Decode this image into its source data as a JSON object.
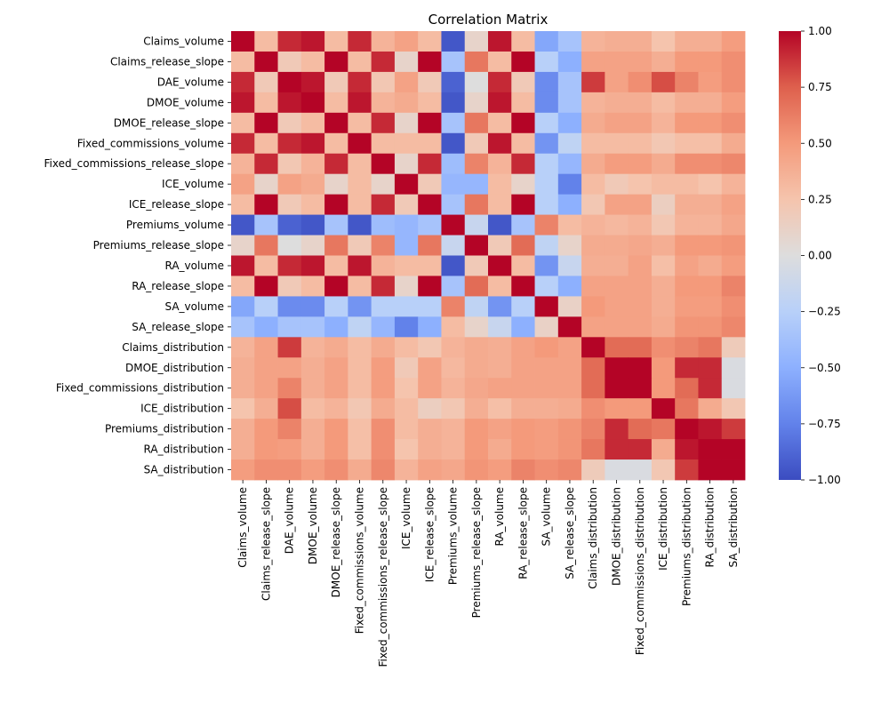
{
  "chart_data": {
    "type": "heatmap",
    "title": "Correlation Matrix",
    "labels": [
      "Claims_volume",
      "Claims_release_slope",
      "DAE_volume",
      "DMOE_volume",
      "DMOE_release_slope",
      "Fixed_commissions_volume",
      "Fixed_commissions_release_slope",
      "ICE_volume",
      "ICE_release_slope",
      "Premiums_volume",
      "Premiums_release_slope",
      "RA_volume",
      "RA_release_slope",
      "SA_volume",
      "SA_release_slope",
      "Claims_distribution",
      "DMOE_distribution",
      "Fixed_commissions_distribution",
      "ICE_distribution",
      "Premiums_distribution",
      "RA_distribution",
      "SA_distribution"
    ],
    "values": [
      [
        1.0,
        0.3,
        0.9,
        0.95,
        0.3,
        0.9,
        0.35,
        0.45,
        0.3,
        -0.95,
        0.1,
        0.95,
        0.3,
        -0.55,
        -0.35,
        0.35,
        0.38,
        0.38,
        0.25,
        0.38,
        0.38,
        0.48
      ],
      [
        0.3,
        1.0,
        0.2,
        0.3,
        1.0,
        0.3,
        0.9,
        0.1,
        1.0,
        -0.35,
        0.65,
        0.3,
        1.0,
        -0.25,
        -0.5,
        0.45,
        0.45,
        0.45,
        0.38,
        0.5,
        0.5,
        0.55
      ],
      [
        0.9,
        0.2,
        1.0,
        0.95,
        0.2,
        0.9,
        0.22,
        0.45,
        0.2,
        -0.9,
        0.0,
        0.9,
        0.2,
        -0.7,
        -0.35,
        0.85,
        0.45,
        0.55,
        0.8,
        0.6,
        0.48,
        0.55
      ],
      [
        0.95,
        0.3,
        0.95,
        1.0,
        0.3,
        0.95,
        0.35,
        0.4,
        0.3,
        -0.95,
        0.1,
        0.95,
        0.3,
        -0.7,
        -0.35,
        0.35,
        0.38,
        0.38,
        0.3,
        0.38,
        0.38,
        0.48
      ],
      [
        0.3,
        1.0,
        0.2,
        0.3,
        1.0,
        0.3,
        0.9,
        0.1,
        1.0,
        -0.35,
        0.65,
        0.3,
        1.0,
        -0.25,
        -0.5,
        0.4,
        0.45,
        0.45,
        0.35,
        0.5,
        0.5,
        0.55
      ],
      [
        0.9,
        0.3,
        0.9,
        0.95,
        0.3,
        1.0,
        0.3,
        0.3,
        0.3,
        -0.95,
        0.2,
        0.95,
        0.3,
        -0.65,
        -0.2,
        0.3,
        0.3,
        0.3,
        0.22,
        0.28,
        0.28,
        0.4
      ],
      [
        0.35,
        0.9,
        0.22,
        0.35,
        0.9,
        0.3,
        1.0,
        0.1,
        0.9,
        -0.4,
        0.6,
        0.35,
        0.9,
        -0.25,
        -0.45,
        0.4,
        0.48,
        0.48,
        0.4,
        0.55,
        0.55,
        0.58
      ],
      [
        0.45,
        0.1,
        0.45,
        0.4,
        0.1,
        0.3,
        0.1,
        1.0,
        0.2,
        -0.45,
        -0.45,
        0.3,
        0.1,
        -0.25,
        -0.75,
        0.3,
        0.2,
        0.25,
        0.3,
        0.3,
        0.25,
        0.35
      ],
      [
        0.3,
        1.0,
        0.2,
        0.3,
        1.0,
        0.3,
        0.9,
        0.2,
        1.0,
        -0.35,
        0.65,
        0.3,
        1.0,
        -0.25,
        -0.5,
        0.22,
        0.45,
        0.45,
        0.15,
        0.38,
        0.38,
        0.45
      ],
      [
        -0.95,
        -0.35,
        -0.9,
        -0.95,
        -0.35,
        -0.95,
        -0.4,
        -0.45,
        -0.35,
        1.0,
        -0.15,
        -0.95,
        -0.35,
        0.6,
        0.3,
        0.35,
        0.32,
        0.35,
        0.22,
        0.35,
        0.35,
        0.42
      ],
      [
        0.1,
        0.65,
        0.0,
        0.1,
        0.65,
        0.2,
        0.6,
        -0.45,
        0.65,
        -0.15,
        1.0,
        0.2,
        0.7,
        -0.2,
        0.1,
        0.4,
        0.4,
        0.42,
        0.38,
        0.5,
        0.5,
        0.52
      ],
      [
        0.95,
        0.3,
        0.9,
        0.95,
        0.3,
        0.95,
        0.35,
        0.3,
        0.3,
        -0.95,
        0.2,
        1.0,
        0.3,
        -0.65,
        -0.15,
        0.38,
        0.38,
        0.45,
        0.28,
        0.45,
        0.4,
        0.48
      ],
      [
        0.3,
        1.0,
        0.2,
        0.3,
        1.0,
        0.3,
        0.9,
        0.1,
        1.0,
        -0.35,
        0.7,
        0.3,
        1.0,
        -0.25,
        -0.5,
        0.45,
        0.45,
        0.45,
        0.38,
        0.5,
        0.5,
        0.6
      ],
      [
        -0.55,
        -0.25,
        -0.7,
        -0.7,
        -0.25,
        -0.65,
        -0.25,
        -0.25,
        -0.25,
        0.6,
        -0.2,
        -0.65,
        -0.25,
        1.0,
        0.12,
        0.5,
        0.45,
        0.45,
        0.38,
        0.48,
        0.48,
        0.55
      ],
      [
        -0.35,
        -0.5,
        -0.35,
        -0.35,
        -0.5,
        -0.2,
        -0.45,
        -0.75,
        -0.5,
        0.3,
        0.1,
        -0.15,
        -0.5,
        0.12,
        1.0,
        0.45,
        0.45,
        0.45,
        0.4,
        0.52,
        0.52,
        0.58
      ],
      [
        0.35,
        0.45,
        0.85,
        0.35,
        0.4,
        0.3,
        0.4,
        0.3,
        0.22,
        0.35,
        0.4,
        0.38,
        0.45,
        0.5,
        0.45,
        1.0,
        0.7,
        0.7,
        0.55,
        0.6,
        0.65,
        0.18
      ],
      [
        0.38,
        0.45,
        0.45,
        0.38,
        0.45,
        0.3,
        0.48,
        0.2,
        0.45,
        0.32,
        0.4,
        0.38,
        0.45,
        0.45,
        0.45,
        0.7,
        1.0,
        1.0,
        0.5,
        0.9,
        0.9,
        -0.03
      ],
      [
        0.38,
        0.45,
        0.6,
        0.38,
        0.45,
        0.3,
        0.48,
        0.25,
        0.45,
        0.35,
        0.42,
        0.45,
        0.45,
        0.45,
        0.45,
        0.7,
        1.0,
        1.0,
        0.5,
        0.7,
        0.9,
        -0.03
      ],
      [
        0.25,
        0.38,
        0.8,
        0.3,
        0.35,
        0.22,
        0.4,
        0.3,
        0.15,
        0.22,
        0.38,
        0.28,
        0.38,
        0.38,
        0.4,
        0.55,
        0.5,
        0.5,
        1.0,
        0.65,
        0.4,
        0.22
      ],
      [
        0.38,
        0.5,
        0.6,
        0.38,
        0.5,
        0.28,
        0.55,
        0.3,
        0.38,
        0.35,
        0.5,
        0.45,
        0.5,
        0.48,
        0.52,
        0.6,
        0.9,
        0.7,
        0.65,
        1.0,
        0.95,
        0.85
      ],
      [
        0.38,
        0.5,
        0.48,
        0.38,
        0.5,
        0.28,
        0.55,
        0.25,
        0.38,
        0.35,
        0.5,
        0.4,
        0.5,
        0.48,
        0.52,
        0.65,
        0.9,
        0.9,
        0.4,
        0.95,
        1.0,
        1.0
      ],
      [
        0.48,
        0.55,
        0.55,
        0.48,
        0.55,
        0.4,
        0.58,
        0.35,
        0.45,
        0.42,
        0.52,
        0.48,
        0.6,
        0.55,
        0.58,
        0.18,
        -0.03,
        -0.03,
        0.22,
        0.85,
        1.0,
        1.0
      ]
    ],
    "colorbar": {
      "colormap": "coolwarm",
      "vmin": -1.0,
      "vmax": 1.0,
      "ticks": [
        "1.00",
        "0.75",
        "0.50",
        "0.25",
        "0.00",
        "−0.25",
        "−0.50",
        "−0.75",
        "−1.00"
      ]
    },
    "grid": false
  }
}
